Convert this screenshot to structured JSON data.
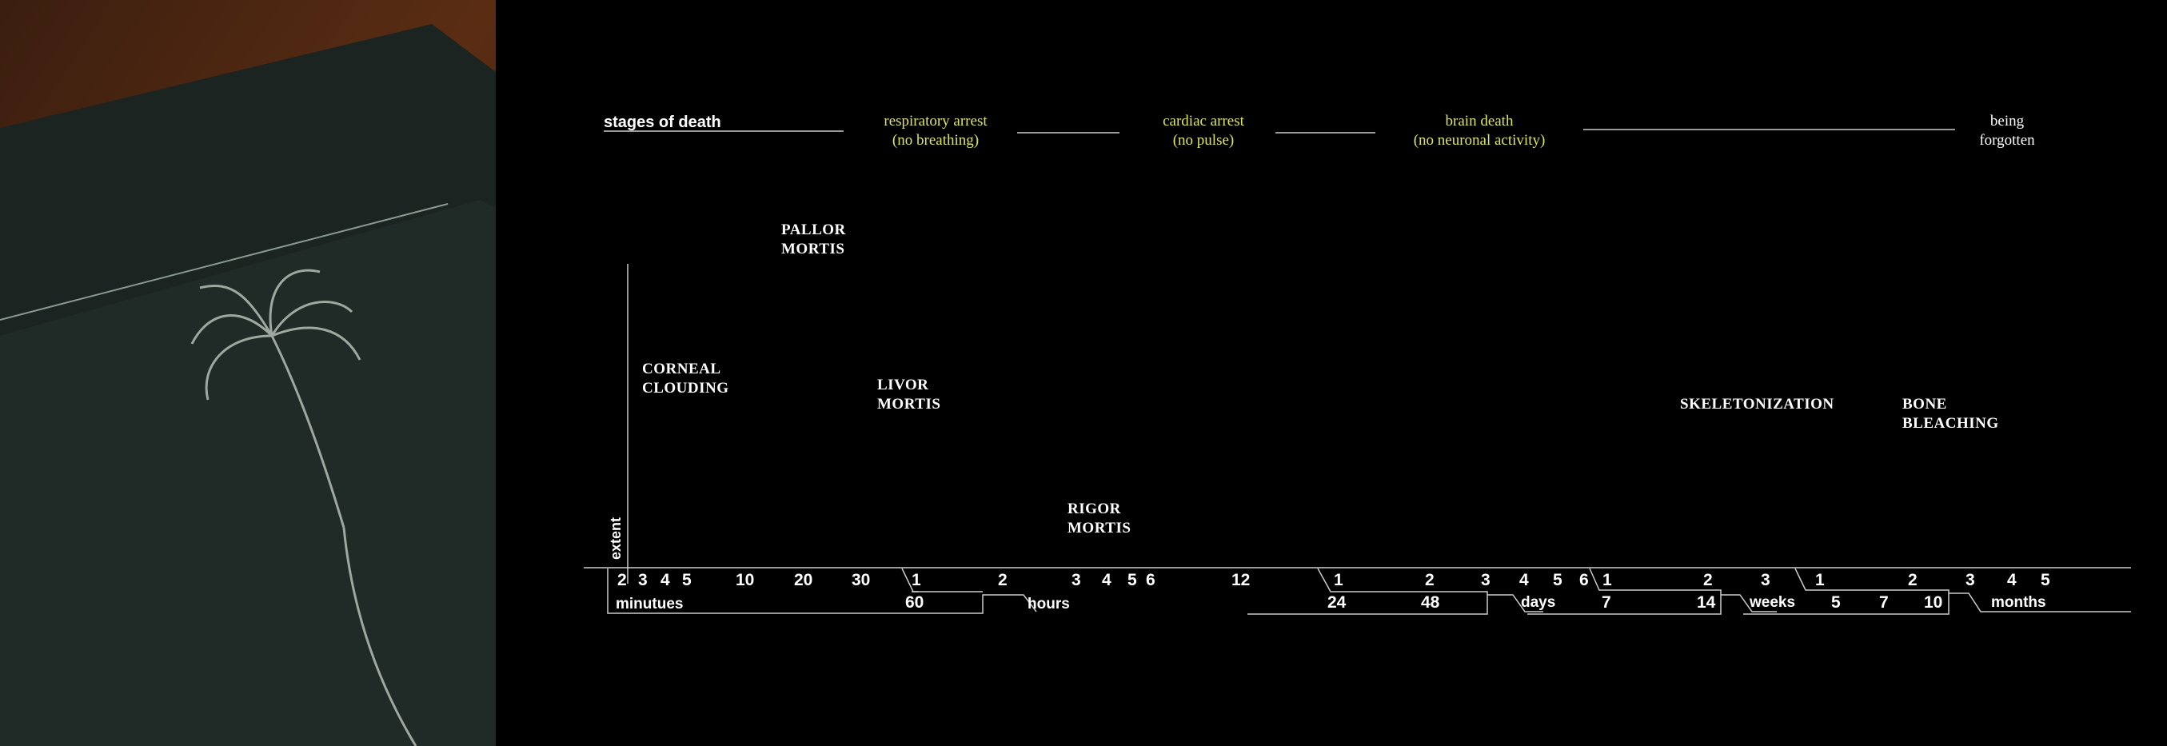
{
  "title": "stages of death",
  "stages": [
    {
      "line1": "respiratory arrest",
      "line2": "(no breathing)"
    },
    {
      "line1": "cardiac arrest",
      "line2": "(no pulse)"
    },
    {
      "line1": "brain death",
      "line2": "(no neuronal activity)"
    },
    {
      "line1": "being",
      "line2": "forgotten"
    }
  ],
  "processes": [
    {
      "line1": "PALLOR",
      "line2": "MORTIS"
    },
    {
      "line1": "CORNEAL",
      "line2": "CLOUDING"
    },
    {
      "line1": "LIVOR",
      "line2": "MORTIS"
    },
    {
      "line1": "RIGOR",
      "line2": "MORTIS"
    },
    {
      "line1": "SKELETONIZATION",
      "line2": ""
    },
    {
      "line1": "BONE",
      "line2": "BLEACHING"
    }
  ],
  "axis_label": "extent",
  "units": [
    "minutues",
    "hours",
    "days",
    "weeks",
    "months"
  ],
  "ticks": {
    "minutes": [
      "2",
      "3",
      "4",
      "5",
      "10",
      "20",
      "30",
      "60"
    ],
    "hours": [
      "1",
      "2",
      "3",
      "4",
      "5",
      "6",
      "12",
      "24",
      "48"
    ],
    "days": [
      "1",
      "2",
      "3",
      "4",
      "5",
      "6",
      "7",
      "14"
    ],
    "weeks": [
      "1",
      "2",
      "3",
      "5",
      "7",
      "10"
    ],
    "months": [
      "3",
      "4",
      "5"
    ]
  },
  "colors": {
    "background": "#000000",
    "stage_text": "#dde36b",
    "text": "#ffffff",
    "line": "#cccccc"
  }
}
